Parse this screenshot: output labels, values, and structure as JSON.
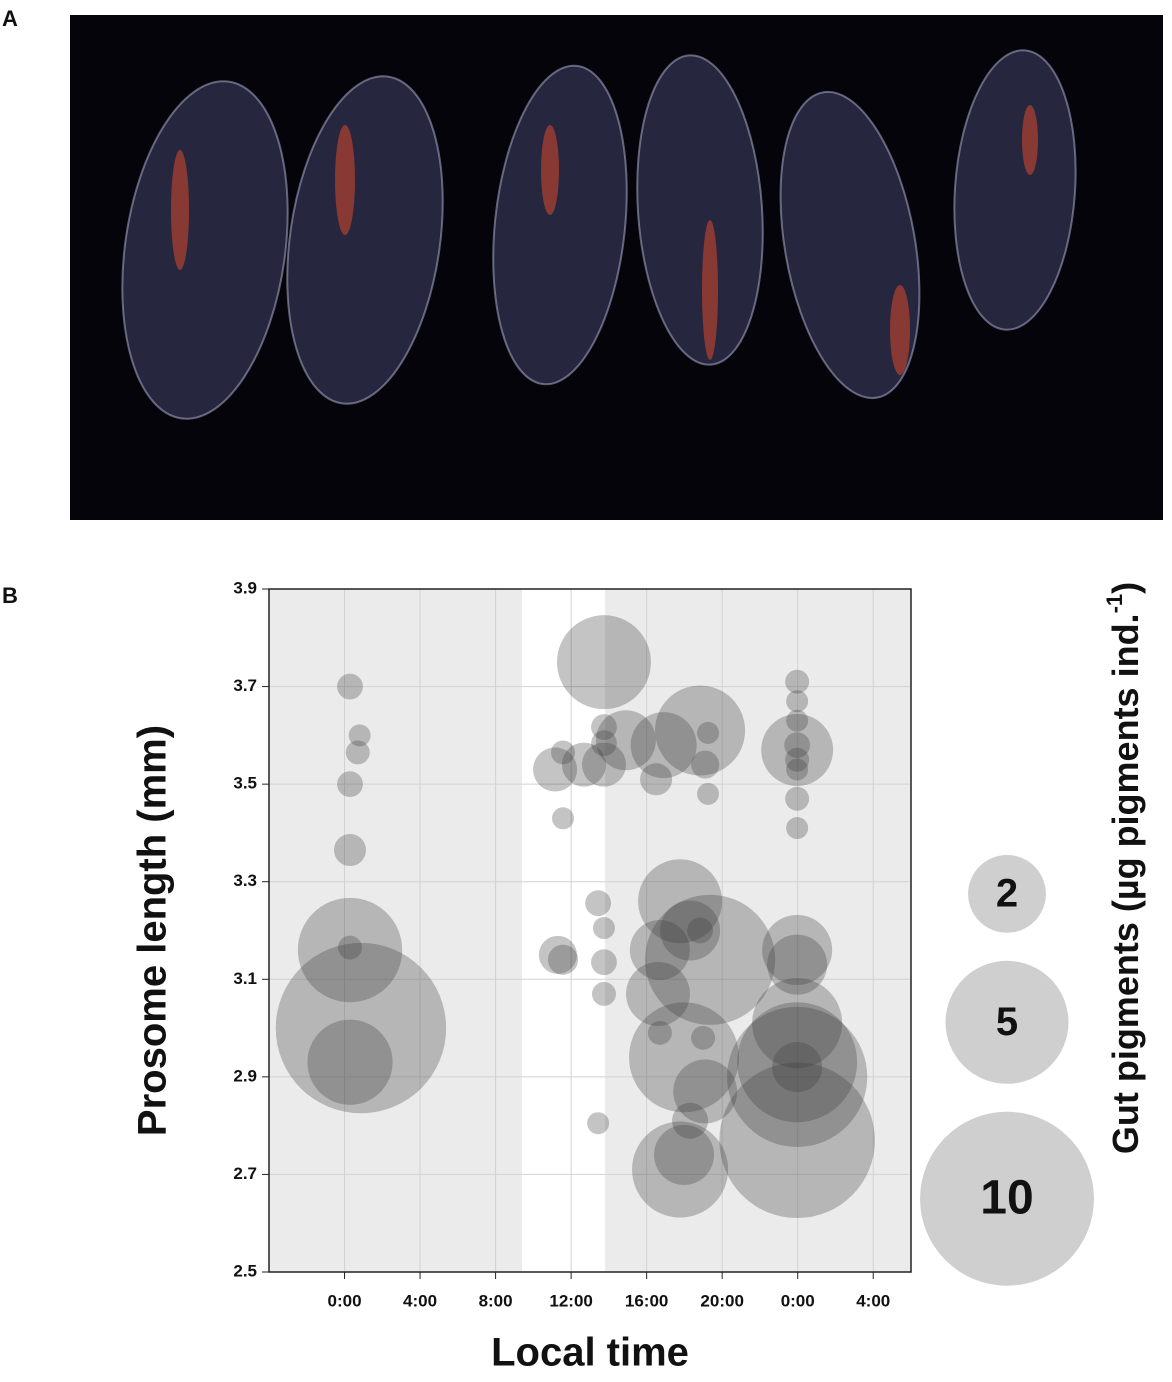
{
  "panels": [
    "A",
    "B"
  ],
  "chart_data": {
    "type": "bubble",
    "xlabel": "Local time",
    "ylabel": "Prosome length (mm)",
    "size_label": "Gut pigments (µg pigments ind.",
    "size_label_sup": "-1",
    "size_label_end": ")",
    "xlim": [
      -4,
      30
    ],
    "ylim": [
      2.5,
      3.9
    ],
    "xticks": [
      {
        "value": 0,
        "label": "0:00"
      },
      {
        "value": 4,
        "label": "4:00"
      },
      {
        "value": 8,
        "label": "8:00"
      },
      {
        "value": 12,
        "label": "12:00"
      },
      {
        "value": 16,
        "label": "16:00"
      },
      {
        "value": 20,
        "label": "20:00"
      },
      {
        "value": 24,
        "label": "0:00"
      },
      {
        "value": 28,
        "label": "4:00"
      }
    ],
    "yticks": [
      2.5,
      2.7,
      2.9,
      3.1,
      3.3,
      3.5,
      3.7,
      3.9
    ],
    "grid": true,
    "shaded_x_ranges": [
      [
        -4,
        9.4
      ],
      [
        13.8,
        30
      ]
    ],
    "size_legend": [
      2,
      5,
      10
    ],
    "series": [
      {
        "color": "#3a3a3a",
        "x": [
          0.29,
          0.8,
          0.7,
          0.29,
          0.29,
          0.29,
          0.29,
          0.87,
          0.29,
          11.15,
          11.57,
          11.57,
          11.3,
          11.57,
          13.74,
          13.74,
          13.74,
          13.74,
          12.68,
          14.9,
          16.5,
          16.9,
          18.83,
          19.25,
          19.1,
          19.25,
          13.43,
          13.74,
          13.74,
          13.74,
          13.43,
          17.77,
          19.36,
          16.7,
          16.6,
          18.83,
          18.3,
          17.98,
          16.7,
          18.99,
          19.1,
          17.77,
          17.98,
          18.3,
          23.97,
          23.97,
          23.97,
          23.97,
          23.97,
          23.97,
          23.97,
          23.97,
          23.97,
          23.97,
          23.97,
          23.97,
          23.97,
          23.97,
          23.97,
          23.97
        ],
        "values": [
          3.7,
          3.6,
          3.565,
          3.5,
          3.365,
          3.16,
          3.165,
          3.0,
          2.93,
          3.53,
          3.565,
          3.43,
          3.15,
          3.14,
          3.75,
          3.617,
          3.584,
          3.54,
          3.54,
          3.59,
          3.51,
          3.58,
          3.61,
          3.605,
          3.54,
          3.48,
          3.256,
          3.205,
          3.135,
          3.07,
          2.805,
          3.26,
          3.14,
          3.16,
          3.07,
          3.2,
          3.2,
          2.94,
          2.99,
          2.98,
          2.87,
          2.71,
          2.74,
          2.81,
          3.71,
          3.67,
          3.63,
          3.57,
          3.58,
          3.55,
          3.53,
          3.47,
          3.41,
          3.16,
          3.13,
          3.01,
          2.93,
          2.9,
          2.77,
          2.92
        ],
        "sizes": [
          0.22,
          0.16,
          0.19,
          0.22,
          0.34,
          3.6,
          0.19,
          9.6,
          2.4,
          0.64,
          0.19,
          0.16,
          0.48,
          0.3,
          2.92,
          0.22,
          0.22,
          0.64,
          0.64,
          1.19,
          0.34,
          1.44,
          2.68,
          0.16,
          0.26,
          0.16,
          0.22,
          0.16,
          0.22,
          0.19,
          0.16,
          2.33,
          5.6,
          1.19,
          1.35,
          0.22,
          1.19,
          4.0,
          0.19,
          0.19,
          1.35,
          3.05,
          1.19,
          0.43,
          0.19,
          0.16,
          0.16,
          1.71,
          0.22,
          0.19,
          0.16,
          0.19,
          0.16,
          1.62,
          1.19,
          2.68,
          4.76,
          6.5,
          8.0,
          0.83
        ]
      }
    ]
  }
}
